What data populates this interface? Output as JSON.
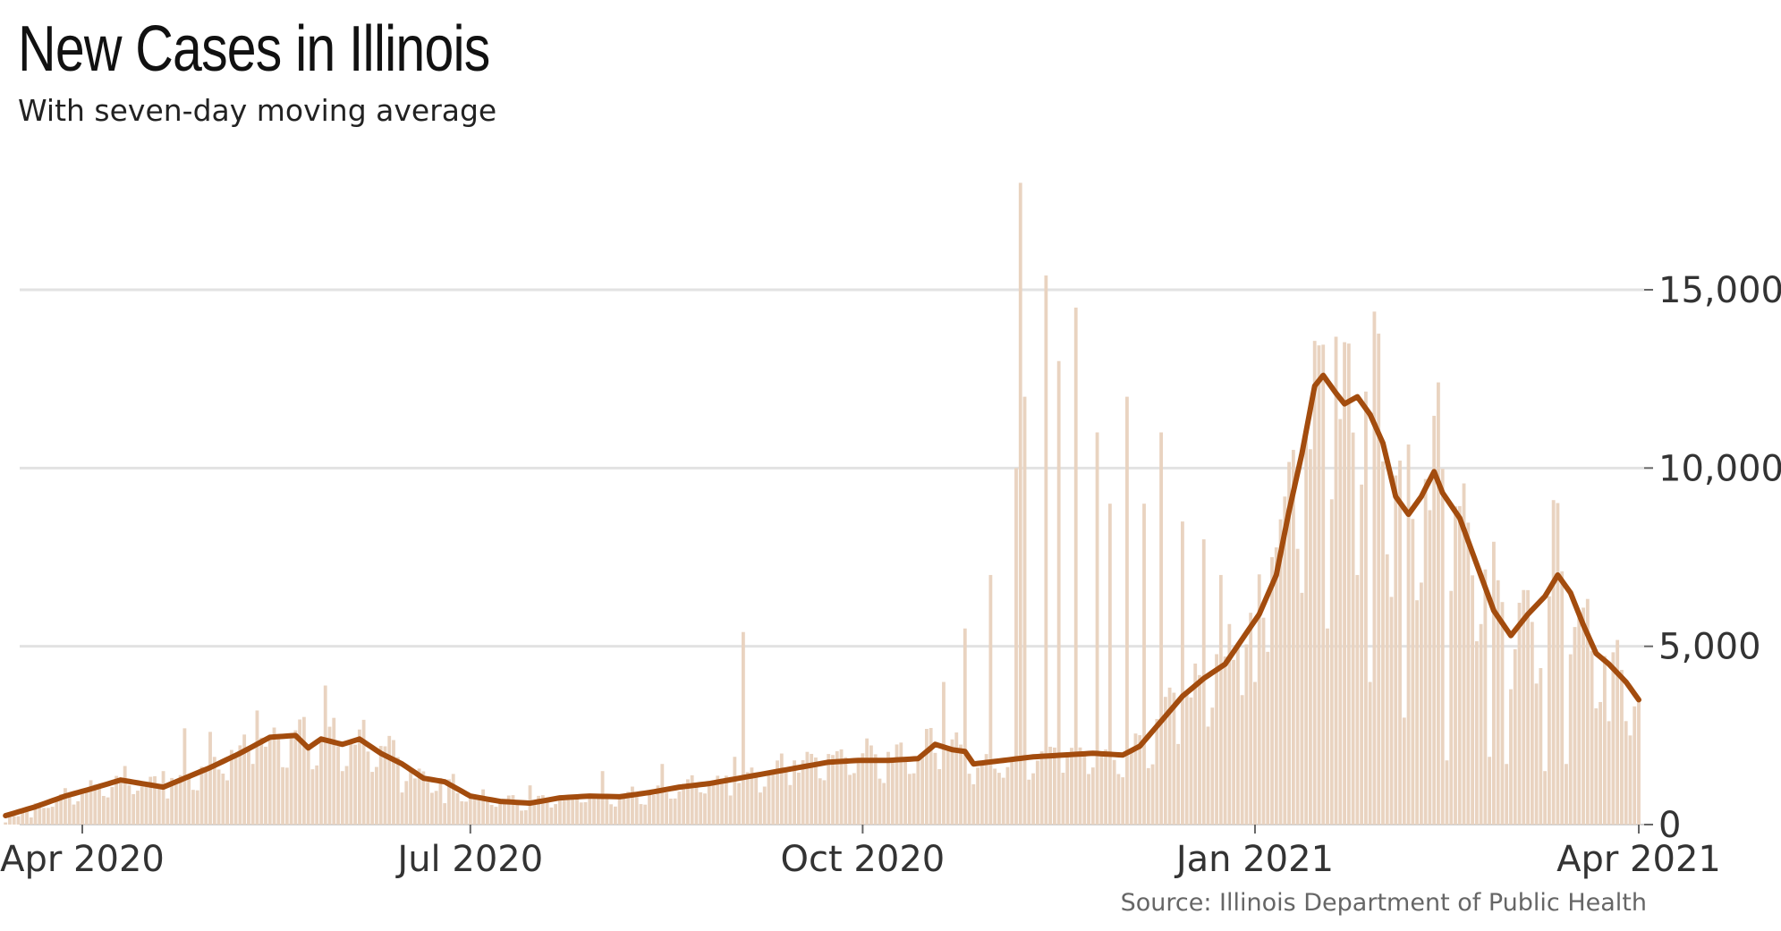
{
  "title": "New Cases in Illinois",
  "subtitle": "With seven-day moving average",
  "source": "Source: Illinois Department of Public Health",
  "colors": {
    "bars": "#e9d3c0",
    "average_line": "#a34c0e",
    "grid": "#e2e2e2",
    "text": "#333333"
  },
  "chart_data": {
    "type": "bar",
    "x_range": [
      "2020-03-14",
      "2021-04-01"
    ],
    "x_ticks": [
      {
        "date": "2020-04-01",
        "label": "Apr 2020"
      },
      {
        "date": "2020-07-01",
        "label": "Jul 2020"
      },
      {
        "date": "2020-10-01",
        "label": "Oct 2020"
      },
      {
        "date": "2021-01-01",
        "label": "Jan 2021"
      },
      {
        "date": "2021-04-01",
        "label": "Apr 2021"
      }
    ],
    "y_ticks": [
      {
        "value": 0,
        "label": "0"
      },
      {
        "value": 5000,
        "label": "5,000"
      },
      {
        "value": 10000,
        "label": "10,000"
      },
      {
        "value": 15000,
        "label": "15,000"
      }
    ],
    "ylim": [
      0,
      18000
    ],
    "grid": true,
    "series": [
      {
        "kind": "bar",
        "note": "daily new cases (spiky points, estimated)",
        "points": [
          [
            "2020-03-14",
            60
          ],
          [
            "2020-03-20",
            200
          ],
          [
            "2020-03-25",
            500
          ],
          [
            "2020-04-01",
            900
          ],
          [
            "2020-04-10",
            1200
          ],
          [
            "2020-04-20",
            1500
          ],
          [
            "2020-04-25",
            2700
          ],
          [
            "2020-05-01",
            2600
          ],
          [
            "2020-05-12",
            3200
          ],
          [
            "2020-05-15",
            2500
          ],
          [
            "2020-05-24",
            2100
          ],
          [
            "2020-05-28",
            3900
          ],
          [
            "2020-05-31",
            2200
          ],
          [
            "2020-06-01",
            1500
          ],
          [
            "2020-06-15",
            900
          ],
          [
            "2020-06-25",
            600
          ],
          [
            "2020-07-01",
            750
          ],
          [
            "2020-07-15",
            1100
          ],
          [
            "2020-08-01",
            1500
          ],
          [
            "2020-08-15",
            1700
          ],
          [
            "2020-09-01",
            1900
          ],
          [
            "2020-09-03",
            5400
          ],
          [
            "2020-09-05",
            1600
          ],
          [
            "2020-09-15",
            1800
          ],
          [
            "2020-10-01",
            2000
          ],
          [
            "2020-10-10",
            2300
          ],
          [
            "2020-10-20",
            4000
          ],
          [
            "2020-10-25",
            5500
          ],
          [
            "2020-10-31",
            7000
          ],
          [
            "2020-11-06",
            10000
          ],
          [
            "2020-11-07",
            18000
          ],
          [
            "2020-11-08",
            12000
          ],
          [
            "2020-11-13",
            15400
          ],
          [
            "2020-11-16",
            13000
          ],
          [
            "2020-11-20",
            14500
          ],
          [
            "2020-11-25",
            11000
          ],
          [
            "2020-11-28",
            9000
          ],
          [
            "2020-12-02",
            12000
          ],
          [
            "2020-12-06",
            9000
          ],
          [
            "2020-12-10",
            11000
          ],
          [
            "2020-12-15",
            8500
          ],
          [
            "2020-12-20",
            8000
          ],
          [
            "2020-12-24",
            7000
          ],
          [
            "2020-12-28",
            5000
          ],
          [
            "2021-01-01",
            4000
          ],
          [
            "2021-01-05",
            7500
          ],
          [
            "2021-01-08",
            9200
          ],
          [
            "2021-01-12",
            6500
          ],
          [
            "2021-01-18",
            5500
          ],
          [
            "2021-01-25",
            7000
          ],
          [
            "2021-01-28",
            4000
          ],
          [
            "2021-02-05",
            3000
          ],
          [
            "2021-02-15",
            1800
          ],
          [
            "2021-02-25",
            1900
          ],
          [
            "2021-03-01",
            1700
          ],
          [
            "2021-03-10",
            1500
          ],
          [
            "2021-03-15",
            1700
          ],
          [
            "2021-03-25",
            2900
          ],
          [
            "2021-03-30",
            2500
          ],
          [
            "2021-04-01",
            3500
          ]
        ]
      },
      {
        "kind": "line",
        "note": "seven-day moving average (estimated)",
        "points": [
          [
            "2020-03-14",
            250
          ],
          [
            "2020-03-21",
            500
          ],
          [
            "2020-03-28",
            800
          ],
          [
            "2020-04-03",
            1000
          ],
          [
            "2020-04-10",
            1250
          ],
          [
            "2020-04-15",
            1150
          ],
          [
            "2020-04-20",
            1050
          ],
          [
            "2020-04-25",
            1300
          ],
          [
            "2020-05-01",
            1600
          ],
          [
            "2020-05-08",
            2000
          ],
          [
            "2020-05-15",
            2450
          ],
          [
            "2020-05-21",
            2500
          ],
          [
            "2020-05-24",
            2150
          ],
          [
            "2020-05-27",
            2400
          ],
          [
            "2020-06-01",
            2250
          ],
          [
            "2020-06-05",
            2400
          ],
          [
            "2020-06-10",
            2000
          ],
          [
            "2020-06-15",
            1700
          ],
          [
            "2020-06-20",
            1300
          ],
          [
            "2020-06-25",
            1200
          ],
          [
            "2020-07-01",
            800
          ],
          [
            "2020-07-08",
            650
          ],
          [
            "2020-07-15",
            600
          ],
          [
            "2020-07-22",
            750
          ],
          [
            "2020-07-29",
            800
          ],
          [
            "2020-08-05",
            780
          ],
          [
            "2020-08-12",
            900
          ],
          [
            "2020-08-19",
            1050
          ],
          [
            "2020-08-26",
            1150
          ],
          [
            "2020-09-02",
            1300
          ],
          [
            "2020-09-09",
            1450
          ],
          [
            "2020-09-16",
            1600
          ],
          [
            "2020-09-23",
            1750
          ],
          [
            "2020-09-30",
            1800
          ],
          [
            "2020-10-07",
            1800
          ],
          [
            "2020-10-14",
            1850
          ],
          [
            "2020-10-18",
            2250
          ],
          [
            "2020-10-22",
            2100
          ],
          [
            "2020-10-25",
            2050
          ],
          [
            "2020-10-27",
            1700
          ],
          [
            "2020-11-03",
            1800
          ],
          [
            "2020-11-10",
            1900
          ],
          [
            "2020-11-17",
            1950
          ],
          [
            "2020-11-24",
            2000
          ],
          [
            "2020-12-01",
            1950
          ],
          [
            "2020-12-05",
            2200
          ],
          [
            "2020-12-10",
            2900
          ],
          [
            "2020-12-15",
            3600
          ],
          [
            "2020-12-20",
            4100
          ],
          [
            "2020-12-25",
            4500
          ],
          [
            "2020-12-29",
            5200
          ],
          [
            "2021-01-02",
            5900
          ],
          [
            "2021-01-06",
            7000
          ],
          [
            "2021-01-09",
            8800
          ],
          [
            "2021-01-12",
            10400
          ],
          [
            "2021-01-15",
            12300
          ],
          [
            "2021-01-17",
            12600
          ],
          [
            "2021-01-20",
            12100
          ],
          [
            "2021-01-22",
            11800
          ],
          [
            "2021-01-25",
            12000
          ],
          [
            "2021-01-28",
            11500
          ],
          [
            "2021-01-31",
            10700
          ],
          [
            "2021-02-03",
            9200
          ],
          [
            "2021-02-06",
            8700
          ],
          [
            "2021-02-09",
            9200
          ],
          [
            "2021-02-12",
            9900
          ],
          [
            "2021-02-14",
            9300
          ],
          [
            "2021-02-18",
            8600
          ],
          [
            "2021-02-22",
            7300
          ],
          [
            "2021-02-26",
            6000
          ],
          [
            "2021-03-02",
            5300
          ],
          [
            "2021-03-06",
            5900
          ],
          [
            "2021-03-10",
            6400
          ],
          [
            "2021-03-13",
            7000
          ],
          [
            "2021-03-16",
            6500
          ],
          [
            "2021-03-19",
            5600
          ],
          [
            "2021-03-22",
            4800
          ],
          [
            "2021-03-25",
            4500
          ],
          [
            "2021-03-29",
            4000
          ],
          [
            "2021-04-01",
            3500
          ]
        ]
      }
    ]
  }
}
